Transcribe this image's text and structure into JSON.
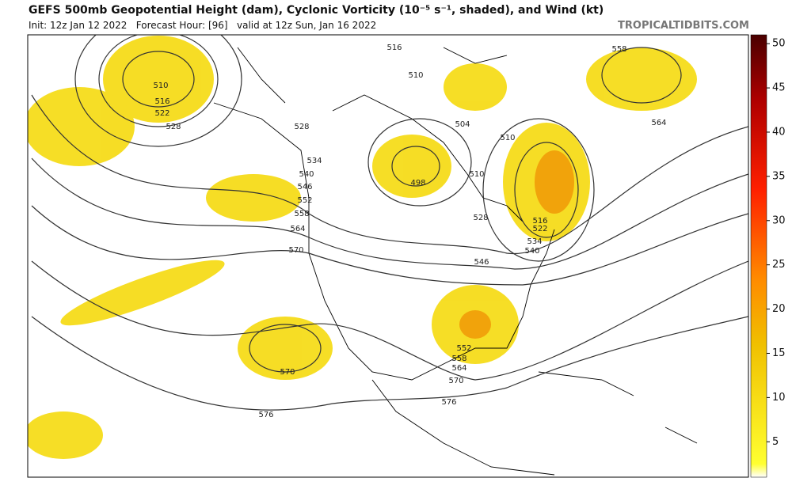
{
  "header": {
    "title": "GEFS 500mb Geopotential Height (dam), Cyclonic Vorticity (10⁻⁵ s⁻¹, shaded), and Wind (kt)",
    "init": "Init: 12z Jan 12 2022   Forecast Hour: [96]   valid at 12z Sun, Jan 16 2022",
    "credit": "TROPICALTIDBITS.COM"
  },
  "colorbar": {
    "lim": [
      1,
      51
    ],
    "ticks": [
      5,
      10,
      15,
      20,
      25,
      30,
      35,
      40,
      45,
      50
    ]
  },
  "contour_labels": [
    "510",
    "516",
    "522",
    "528",
    "528",
    "534",
    "540",
    "546",
    "552",
    "558",
    "564",
    "570",
    "516",
    "510",
    "504",
    "498",
    "510",
    "510",
    "528",
    "516",
    "522",
    "534",
    "540",
    "546",
    "552",
    "558",
    "564",
    "570",
    "576",
    "570",
    "576",
    "558",
    "564"
  ]
}
